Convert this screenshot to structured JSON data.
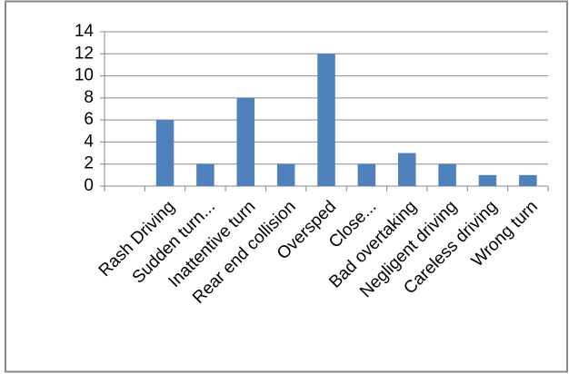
{
  "chart_data": {
    "type": "bar",
    "categories": [
      null,
      "Rash Driving",
      "Sudden turn...",
      "Inattentive turn",
      "Rear end collision",
      "Oversped",
      "Close...",
      "Bad overtaking",
      "Negligent driving",
      "Careless driving",
      "Wrong turn"
    ],
    "values": [
      null,
      6,
      2,
      8,
      2,
      12,
      2,
      3,
      2,
      1,
      1
    ],
    "color": "#4f81bd",
    "ylim": [
      0,
      14
    ],
    "yticks": [
      0,
      2,
      4,
      6,
      8,
      10,
      12,
      14
    ],
    "grid": true
  }
}
